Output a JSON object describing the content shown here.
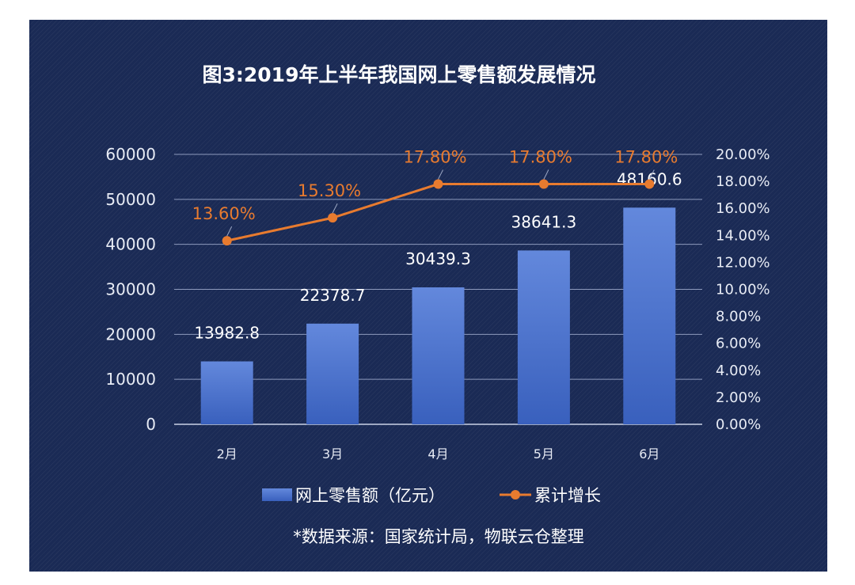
{
  "chart_data": {
    "type": "bar",
    "title": "图3:2019年上半年我国网上零售额发展情况",
    "categories": [
      "2月",
      "3月",
      "4月",
      "5月",
      "6月"
    ],
    "series": [
      {
        "name": "网上零售额（亿元）",
        "type": "bar",
        "axis": "left",
        "values": [
          13982.8,
          22378.7,
          30439.3,
          38641.3,
          48160.6
        ],
        "labels": [
          "13982.8",
          "22378.7",
          "30439.3",
          "38641.3",
          "48160.6"
        ]
      },
      {
        "name": "累计增长",
        "type": "line",
        "axis": "right",
        "values": [
          13.6,
          15.3,
          17.8,
          17.8,
          17.8
        ],
        "labels": [
          "13.60%",
          "15.30%",
          "17.80%",
          "17.80%",
          "17.80%"
        ]
      }
    ],
    "y_left": {
      "lim": [
        0,
        60000
      ],
      "ticks": [
        "0",
        "10000",
        "20000",
        "30000",
        "40000",
        "50000",
        "60000"
      ]
    },
    "y_right": {
      "lim": [
        0,
        20
      ],
      "ticks": [
        "0.00%",
        "2.00%",
        "4.00%",
        "6.00%",
        "8.00%",
        "10.00%",
        "12.00%",
        "14.00%",
        "16.00%",
        "18.00%",
        "20.00%"
      ]
    },
    "grid": true,
    "legend": "bottom",
    "source_note": "*数据来源：国家统计局，物联云仓整理",
    "colors": {
      "background": "#1a2a55",
      "bar": "#4a74d1",
      "line": "#e87b2f",
      "text": "#ffffff"
    }
  }
}
